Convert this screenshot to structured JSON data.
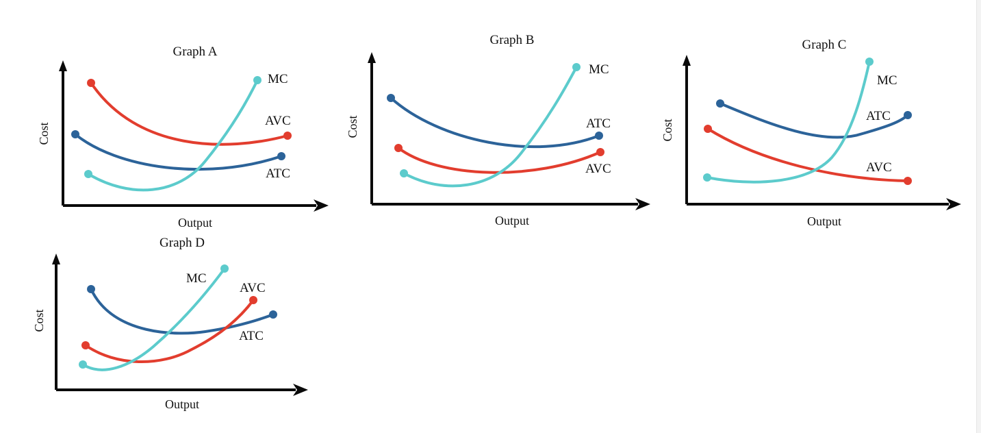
{
  "colors": {
    "MC": "#5ccbcc",
    "AVC": "#e23d2e",
    "ATC": "#2c6399",
    "axis": "#0a0a0a"
  },
  "axis_labels": {
    "x": "Output",
    "y": "Cost"
  },
  "graphs": [
    {
      "id": "a",
      "title": "Graph A",
      "curves": [
        {
          "name": "MC",
          "label": "MC"
        },
        {
          "name": "AVC",
          "label": "AVC"
        },
        {
          "name": "ATC",
          "label": "ATC"
        }
      ]
    },
    {
      "id": "b",
      "title": "Graph B",
      "curves": [
        {
          "name": "MC",
          "label": "MC"
        },
        {
          "name": "ATC",
          "label": "ATC"
        },
        {
          "name": "AVC",
          "label": "AVC"
        }
      ]
    },
    {
      "id": "c",
      "title": "Graph C",
      "curves": [
        {
          "name": "MC",
          "label": "MC"
        },
        {
          "name": "ATC",
          "label": "ATC"
        },
        {
          "name": "AVC",
          "label": "AVC"
        }
      ]
    },
    {
      "id": "d",
      "title": "Graph D",
      "curves": [
        {
          "name": "MC",
          "label": "MC"
        },
        {
          "name": "AVC",
          "label": "AVC"
        },
        {
          "name": "ATC",
          "label": "ATC"
        }
      ]
    }
  ]
}
